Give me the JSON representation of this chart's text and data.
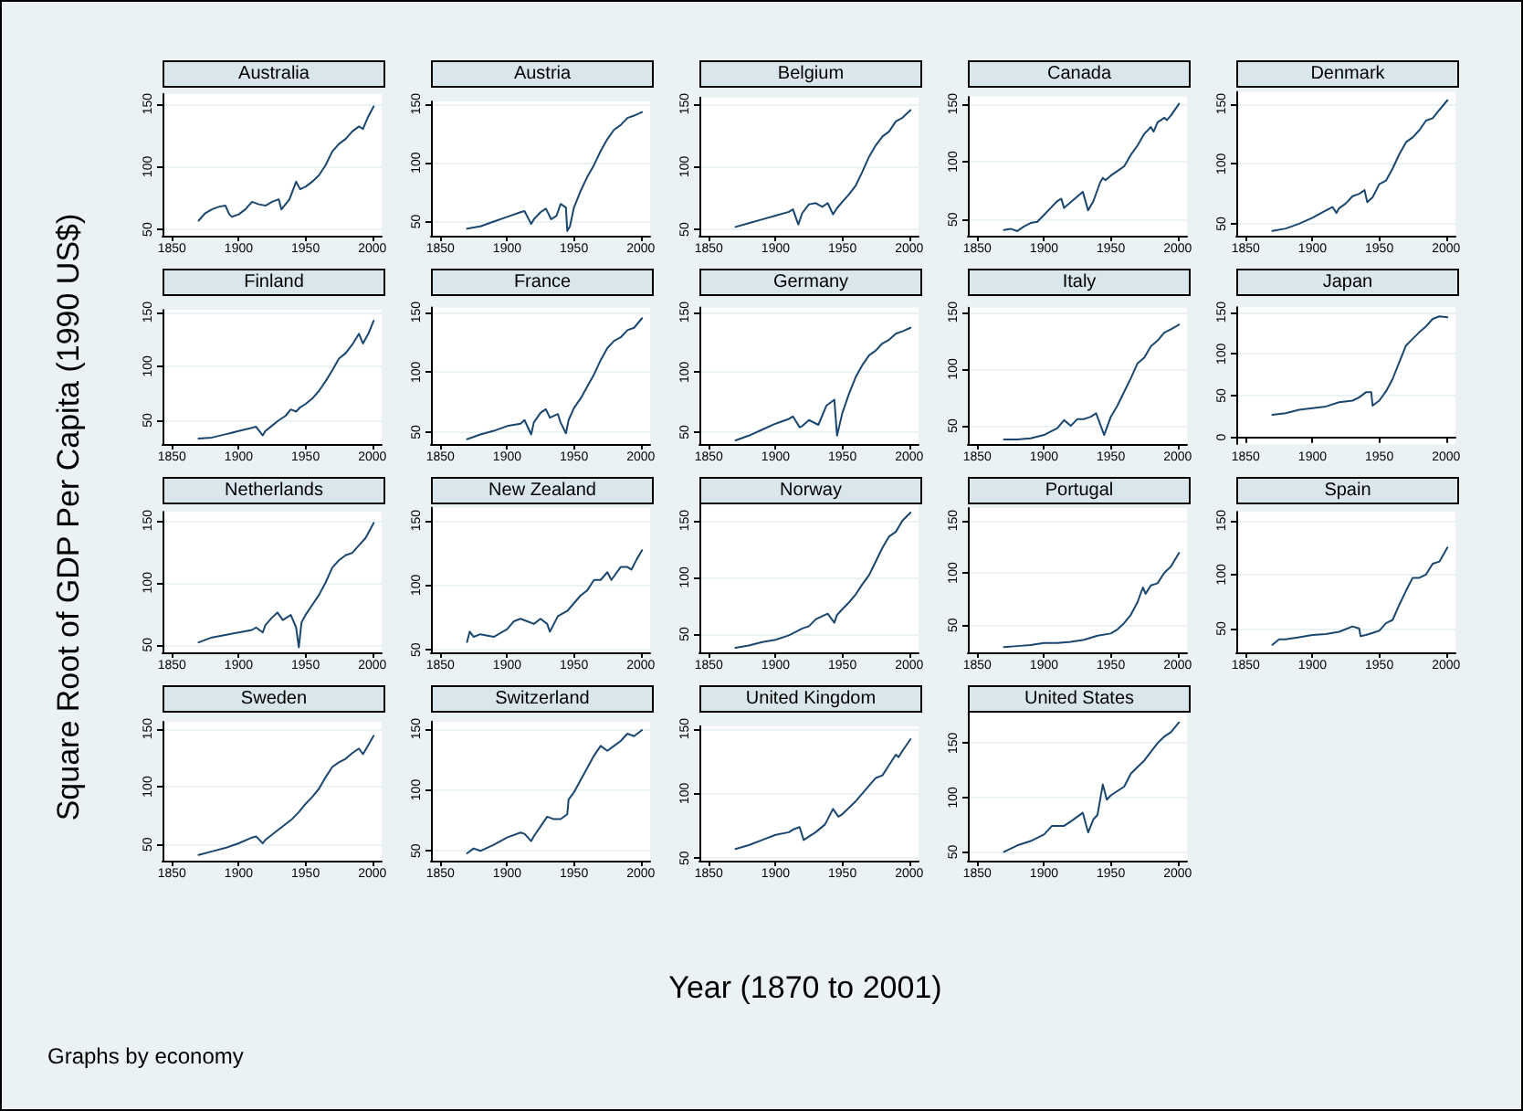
{
  "chart_data": [
    {
      "type": "line",
      "title": "Australia",
      "color": "#1a476f",
      "grid": "y",
      "xlim": [
        1843,
        2007
      ],
      "xticks": [
        1850,
        1900,
        1950,
        2000
      ],
      "ylim": [
        45,
        158
      ],
      "yticks": [
        50,
        100,
        150
      ],
      "x": [
        1870,
        1875,
        1880,
        1885,
        1890,
        1893,
        1895,
        1900,
        1905,
        1910,
        1915,
        1920,
        1925,
        1930,
        1932,
        1938,
        1943,
        1946,
        1950,
        1955,
        1960,
        1965,
        1970,
        1975,
        1980,
        1985,
        1990,
        1993,
        1997,
        2001
      ],
      "values": [
        57,
        63,
        66,
        68,
        69,
        62,
        60,
        62,
        66,
        72,
        70,
        69,
        72,
        74,
        66,
        74,
        88,
        82,
        84,
        88,
        93,
        101,
        112,
        118,
        122,
        128,
        132,
        130,
        140,
        148
      ]
    },
    {
      "type": "line",
      "title": "Austria",
      "color": "#1a476f",
      "grid": "y",
      "xlim": [
        1843,
        2007
      ],
      "xticks": [
        1850,
        1900,
        1950,
        2000
      ],
      "ylim": [
        38,
        152
      ],
      "yticks": [
        50,
        100,
        150
      ],
      "x": [
        1870,
        1880,
        1890,
        1900,
        1910,
        1913,
        1918,
        1920,
        1925,
        1929,
        1933,
        1937,
        1940,
        1944,
        1945,
        1947,
        1950,
        1955,
        1960,
        1965,
        1970,
        1975,
        1980,
        1985,
        1990,
        1995,
        2001
      ],
      "values": [
        44,
        46,
        50,
        54,
        58,
        59,
        48,
        52,
        58,
        61,
        52,
        55,
        65,
        62,
        42,
        46,
        62,
        76,
        88,
        98,
        110,
        120,
        128,
        132,
        138,
        140,
        143
      ]
    },
    {
      "type": "line",
      "title": "Belgium",
      "color": "#1a476f",
      "grid": "y",
      "xlim": [
        1843,
        2007
      ],
      "xticks": [
        1850,
        1900,
        1950,
        2000
      ],
      "ylim": [
        45,
        155
      ],
      "yticks": [
        50,
        100,
        150
      ],
      "x": [
        1870,
        1880,
        1890,
        1900,
        1910,
        1913,
        1917,
        1920,
        1925,
        1930,
        1935,
        1939,
        1943,
        1946,
        1950,
        1955,
        1960,
        1965,
        1970,
        1975,
        1980,
        1985,
        1990,
        1995,
        2001
      ],
      "values": [
        52,
        55,
        58,
        61,
        64,
        66,
        54,
        63,
        70,
        71,
        68,
        71,
        62,
        67,
        72,
        78,
        85,
        96,
        108,
        117,
        124,
        128,
        136,
        139,
        145
      ]
    },
    {
      "type": "line",
      "title": "Canada",
      "color": "#1a476f",
      "grid": "y",
      "xlim": [
        1843,
        2007
      ],
      "xticks": [
        1850,
        1900,
        1950,
        2000
      ],
      "ylim": [
        36,
        156
      ],
      "yticks": [
        50,
        100,
        150
      ],
      "x": [
        1870,
        1875,
        1880,
        1885,
        1890,
        1895,
        1900,
        1905,
        1910,
        1913,
        1915,
        1920,
        1925,
        1929,
        1933,
        1937,
        1942,
        1944,
        1946,
        1950,
        1955,
        1960,
        1965,
        1970,
        1975,
        1980,
        1982,
        1985,
        1990,
        1992,
        1995,
        2001
      ],
      "values": [
        41,
        42,
        40,
        44,
        47,
        48,
        54,
        60,
        66,
        68,
        60,
        65,
        70,
        74,
        58,
        66,
        82,
        86,
        84,
        88,
        92,
        96,
        106,
        114,
        124,
        130,
        126,
        134,
        138,
        136,
        140,
        150
      ]
    },
    {
      "type": "line",
      "title": "Denmark",
      "color": "#1a476f",
      "grid": "y",
      "xlim": [
        1843,
        2007
      ],
      "xticks": [
        1850,
        1900,
        1950,
        2000
      ],
      "ylim": [
        40,
        160
      ],
      "yticks": [
        50,
        100,
        150
      ],
      "x": [
        1870,
        1880,
        1890,
        1900,
        1910,
        1915,
        1918,
        1920,
        1925,
        1930,
        1935,
        1939,
        1941,
        1945,
        1950,
        1955,
        1960,
        1965,
        1970,
        1975,
        1980,
        1985,
        1990,
        1995,
        2001
      ],
      "values": [
        44,
        46,
        50,
        55,
        61,
        64,
        59,
        63,
        67,
        73,
        75,
        78,
        68,
        72,
        83,
        86,
        96,
        108,
        118,
        122,
        128,
        136,
        138,
        145,
        153
      ]
    },
    {
      "type": "line",
      "title": "Finland",
      "color": "#1a476f",
      "grid": "y",
      "xlim": [
        1843,
        2007
      ],
      "xticks": [
        1850,
        1900,
        1950,
        2000
      ],
      "ylim": [
        28,
        152
      ],
      "yticks": [
        50,
        100,
        150
      ],
      "x": [
        1870,
        1880,
        1890,
        1900,
        1910,
        1913,
        1918,
        1920,
        1925,
        1930,
        1935,
        1939,
        1943,
        1946,
        1950,
        1955,
        1960,
        1965,
        1970,
        1975,
        1980,
        1985,
        1990,
        1993,
        1997,
        2001
      ],
      "values": [
        33,
        34,
        37,
        40,
        43,
        44,
        36,
        40,
        45,
        50,
        54,
        60,
        58,
        62,
        65,
        70,
        77,
        86,
        96,
        107,
        112,
        120,
        130,
        121,
        130,
        142
      ]
    },
    {
      "type": "line",
      "title": "France",
      "color": "#1a476f",
      "grid": "y",
      "xlim": [
        1843,
        2007
      ],
      "xticks": [
        1850,
        1900,
        1950,
        2000
      ],
      "ylim": [
        40,
        154
      ],
      "yticks": [
        50,
        100,
        150
      ],
      "x": [
        1870,
        1880,
        1890,
        1900,
        1910,
        1913,
        1918,
        1920,
        1925,
        1929,
        1932,
        1938,
        1940,
        1944,
        1946,
        1950,
        1955,
        1960,
        1965,
        1970,
        1975,
        1980,
        1985,
        1990,
        1995,
        2001
      ],
      "values": [
        44,
        48,
        51,
        55,
        57,
        60,
        48,
        58,
        66,
        69,
        62,
        65,
        58,
        49,
        60,
        70,
        78,
        88,
        98,
        110,
        120,
        126,
        129,
        135,
        137,
        145
      ]
    },
    {
      "type": "line",
      "title": "Germany",
      "color": "#1a476f",
      "grid": "y",
      "xlim": [
        1843,
        2007
      ],
      "xticks": [
        1850,
        1900,
        1950,
        2000
      ],
      "ylim": [
        40,
        154
      ],
      "yticks": [
        50,
        100,
        150
      ],
      "x": [
        1870,
        1880,
        1890,
        1900,
        1910,
        1913,
        1918,
        1920,
        1925,
        1932,
        1938,
        1944,
        1946,
        1950,
        1955,
        1960,
        1965,
        1970,
        1975,
        1980,
        1985,
        1990,
        1995,
        2001
      ],
      "values": [
        43,
        47,
        52,
        57,
        61,
        63,
        54,
        55,
        60,
        56,
        72,
        77,
        47,
        66,
        82,
        96,
        106,
        114,
        118,
        124,
        127,
        132,
        134,
        137
      ]
    },
    {
      "type": "line",
      "title": "Italy",
      "color": "#1a476f",
      "grid": "y",
      "xlim": [
        1843,
        2007
      ],
      "xticks": [
        1850,
        1900,
        1950,
        2000
      ],
      "ylim": [
        34,
        154
      ],
      "yticks": [
        50,
        100,
        150
      ],
      "x": [
        1870,
        1880,
        1890,
        1900,
        1910,
        1915,
        1920,
        1925,
        1930,
        1935,
        1939,
        1945,
        1950,
        1955,
        1960,
        1965,
        1970,
        1975,
        1980,
        1985,
        1990,
        1995,
        2001
      ],
      "values": [
        38,
        38,
        39,
        42,
        48,
        55,
        50,
        56,
        56,
        58,
        61,
        42,
        58,
        68,
        80,
        92,
        105,
        110,
        120,
        125,
        132,
        135,
        139
      ]
    },
    {
      "type": "line",
      "title": "Japan",
      "color": "#1a476f",
      "grid": "y",
      "xlim": [
        1843,
        2007
      ],
      "xticks": [
        1850,
        1900,
        1950,
        2000
      ],
      "ylim": [
        -8,
        156
      ],
      "yticks": [
        0,
        50,
        100,
        150
      ],
      "x": [
        1870,
        1880,
        1890,
        1900,
        1910,
        1920,
        1930,
        1935,
        1940,
        1944,
        1945,
        1950,
        1955,
        1960,
        1965,
        1970,
        1975,
        1980,
        1985,
        1990,
        1995,
        2001
      ],
      "values": [
        27,
        29,
        33,
        35,
        37,
        42,
        44,
        48,
        54,
        54,
        38,
        44,
        55,
        70,
        90,
        110,
        118,
        126,
        133,
        142,
        145,
        144
      ]
    },
    {
      "type": "line",
      "title": "Netherlands",
      "color": "#1a476f",
      "grid": "y",
      "xlim": [
        1843,
        2007
      ],
      "xticks": [
        1850,
        1900,
        1950,
        2000
      ],
      "ylim": [
        44,
        157
      ],
      "yticks": [
        50,
        100,
        150
      ],
      "x": [
        1870,
        1880,
        1890,
        1900,
        1910,
        1913,
        1918,
        1920,
        1925,
        1929,
        1933,
        1939,
        1943,
        1945,
        1947,
        1950,
        1955,
        1960,
        1965,
        1970,
        1975,
        1980,
        1985,
        1990,
        1995,
        2001
      ],
      "values": [
        52,
        56,
        58,
        60,
        62,
        64,
        60,
        66,
        72,
        76,
        70,
        74,
        64,
        48,
        68,
        74,
        82,
        90,
        100,
        112,
        118,
        122,
        124,
        130,
        136,
        148
      ]
    },
    {
      "type": "line",
      "title": "New Zealand",
      "color": "#1a476f",
      "grid": "y",
      "xlim": [
        1843,
        2007
      ],
      "xticks": [
        1850,
        1900,
        1950,
        2000
      ],
      "ylim": [
        48,
        160
      ],
      "yticks": [
        50,
        100,
        150
      ],
      "x": [
        1870,
        1872,
        1875,
        1880,
        1890,
        1900,
        1905,
        1910,
        1915,
        1920,
        1925,
        1930,
        1932,
        1938,
        1945,
        1950,
        1955,
        1960,
        1965,
        1970,
        1975,
        1978,
        1985,
        1990,
        1993,
        1997,
        2001
      ],
      "values": [
        56,
        64,
        60,
        62,
        60,
        66,
        72,
        74,
        72,
        70,
        74,
        70,
        64,
        76,
        80,
        86,
        92,
        96,
        104,
        104,
        110,
        104,
        114,
        114,
        112,
        120,
        127
      ]
    },
    {
      "type": "line",
      "title": "Norway",
      "color": "#1a476f",
      "grid": "y",
      "xlim": [
        1843,
        2007
      ],
      "xticks": [
        1850,
        1900,
        1950,
        2000
      ],
      "ylim": [
        34,
        164
      ],
      "yticks": [
        50,
        100,
        150
      ],
      "x": [
        1870,
        1880,
        1890,
        1900,
        1910,
        1920,
        1925,
        1930,
        1939,
        1944,
        1946,
        1950,
        1955,
        1960,
        1965,
        1970,
        1975,
        1980,
        1985,
        1990,
        1995,
        2001
      ],
      "values": [
        38,
        40,
        43,
        45,
        49,
        55,
        57,
        63,
        68,
        60,
        67,
        72,
        78,
        85,
        94,
        102,
        114,
        126,
        136,
        140,
        150,
        157
      ]
    },
    {
      "type": "line",
      "title": "Portugal",
      "color": "#1a476f",
      "grid": "y",
      "xlim": [
        1843,
        2007
      ],
      "xticks": [
        1850,
        1900,
        1950,
        2000
      ],
      "ylim": [
        24,
        162
      ],
      "yticks": [
        50,
        100,
        150
      ],
      "x": [
        1870,
        1880,
        1890,
        1900,
        1910,
        1920,
        1930,
        1940,
        1950,
        1955,
        1960,
        1965,
        1970,
        1974,
        1976,
        1980,
        1985,
        1990,
        1995,
        2001
      ],
      "values": [
        29,
        30,
        31,
        33,
        33,
        34,
        36,
        40,
        42,
        46,
        52,
        60,
        72,
        86,
        80,
        88,
        90,
        100,
        106,
        119
      ]
    },
    {
      "type": "line",
      "title": "Spain",
      "color": "#1a476f",
      "grid": "y",
      "xlim": [
        1843,
        2007
      ],
      "xticks": [
        1850,
        1900,
        1950,
        2000
      ],
      "ylim": [
        28,
        158
      ],
      "yticks": [
        50,
        100,
        150
      ],
      "x": [
        1870,
        1875,
        1880,
        1890,
        1900,
        1910,
        1920,
        1930,
        1935,
        1936,
        1940,
        1945,
        1950,
        1955,
        1960,
        1965,
        1970,
        1975,
        1980,
        1985,
        1990,
        1995,
        2001
      ],
      "values": [
        35,
        40,
        40,
        42,
        44,
        45,
        47,
        52,
        50,
        43,
        44,
        46,
        48,
        55,
        58,
        72,
        85,
        97,
        97,
        100,
        110,
        112,
        125
      ]
    },
    {
      "type": "line",
      "title": "Sweden",
      "color": "#1a476f",
      "grid": "y",
      "xlim": [
        1843,
        2007
      ],
      "xticks": [
        1850,
        1900,
        1950,
        2000
      ],
      "ylim": [
        36,
        156
      ],
      "yticks": [
        50,
        100,
        150
      ],
      "x": [
        1870,
        1880,
        1890,
        1900,
        1910,
        1913,
        1918,
        1920,
        1930,
        1940,
        1945,
        1950,
        1955,
        1960,
        1965,
        1970,
        1975,
        1980,
        1985,
        1990,
        1993,
        1997,
        2001
      ],
      "values": [
        41,
        44,
        47,
        51,
        56,
        57,
        51,
        54,
        63,
        72,
        78,
        85,
        91,
        98,
        108,
        117,
        121,
        124,
        129,
        133,
        128,
        136,
        144
      ]
    },
    {
      "type": "line",
      "title": "Switzerland",
      "color": "#1a476f",
      "grid": "y",
      "xlim": [
        1843,
        2007
      ],
      "xticks": [
        1850,
        1900,
        1950,
        2000
      ],
      "ylim": [
        42,
        156
      ],
      "yticks": [
        50,
        100,
        150
      ],
      "x": [
        1870,
        1875,
        1880,
        1890,
        1900,
        1910,
        1913,
        1918,
        1920,
        1925,
        1930,
        1935,
        1940,
        1945,
        1946,
        1950,
        1955,
        1960,
        1965,
        1970,
        1975,
        1980,
        1985,
        1990,
        1995,
        2001
      ],
      "values": [
        48,
        52,
        50,
        55,
        61,
        65,
        64,
        58,
        62,
        70,
        78,
        76,
        76,
        80,
        92,
        98,
        108,
        118,
        128,
        136,
        132,
        136,
        140,
        146,
        144,
        149
      ]
    },
    {
      "type": "line",
      "title": "United Kingdom",
      "color": "#1a476f",
      "grid": "y",
      "xlim": [
        1843,
        2007
      ],
      "xticks": [
        1850,
        1900,
        1950,
        2000
      ],
      "ylim": [
        48,
        152
      ],
      "yticks": [
        50,
        100,
        150
      ],
      "x": [
        1870,
        1880,
        1890,
        1900,
        1910,
        1913,
        1918,
        1921,
        1930,
        1937,
        1943,
        1947,
        1950,
        1955,
        1960,
        1965,
        1970,
        1975,
        1980,
        1985,
        1990,
        1992,
        1995,
        2001
      ],
      "values": [
        57,
        60,
        64,
        68,
        70,
        72,
        74,
        64,
        70,
        76,
        88,
        82,
        84,
        89,
        94,
        100,
        106,
        112,
        114,
        122,
        130,
        128,
        133,
        142
      ]
    },
    {
      "type": "line",
      "title": "United States",
      "color": "#1a476f",
      "grid": "y",
      "xlim": [
        1843,
        2007
      ],
      "xticks": [
        1850,
        1900,
        1950,
        2000
      ],
      "ylim": [
        42,
        178
      ],
      "yticks": [
        50,
        100,
        150
      ],
      "x": [
        1870,
        1880,
        1890,
        1900,
        1906,
        1910,
        1915,
        1920,
        1929,
        1933,
        1937,
        1940,
        1944,
        1947,
        1950,
        1955,
        1960,
        1965,
        1970,
        1975,
        1980,
        1985,
        1990,
        1995,
        2001
      ],
      "values": [
        50,
        56,
        60,
        66,
        74,
        74,
        74,
        78,
        86,
        68,
        80,
        84,
        112,
        98,
        102,
        106,
        110,
        122,
        128,
        134,
        142,
        150,
        156,
        160,
        169
      ]
    },
    {
      "type": "other",
      "xlabel": "Year (1870 to 2001)",
      "ylabel": "Square Root of GDP Per Capita (1990 US$)",
      "annotations": [
        "Graphs by economy"
      ]
    }
  ]
}
